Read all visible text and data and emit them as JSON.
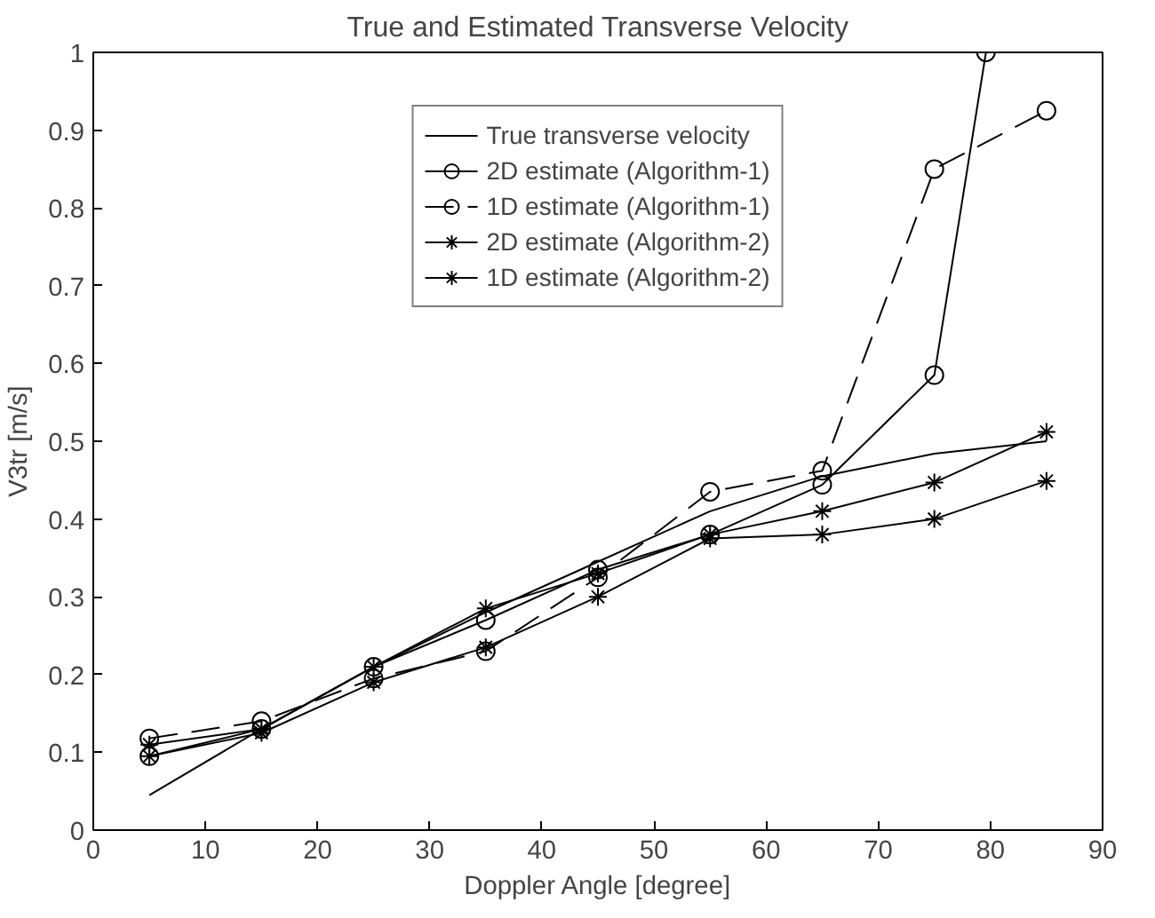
{
  "chart_data": {
    "type": "line",
    "title": "True and Estimated Transverse Velocity",
    "xlabel": "Doppler Angle [degree]",
    "ylabel": "V3tr [m/s]",
    "x": [
      5,
      15,
      25,
      35,
      45,
      55,
      65,
      75,
      85
    ],
    "xlim": [
      0,
      90
    ],
    "xticks": [
      0,
      10,
      20,
      30,
      40,
      50,
      60,
      70,
      80,
      90
    ],
    "ylim": [
      0,
      1
    ],
    "yticks": [
      0,
      0.1,
      0.2,
      0.3,
      0.4,
      0.5,
      0.6,
      0.7,
      0.8,
      0.9,
      1
    ],
    "grid": false,
    "legend": "top",
    "series": [
      {
        "name": "True transverse velocity",
        "color": "#000000",
        "marker": "none",
        "line_style": "solid",
        "values": [
          0.045,
          0.13,
          0.21,
          0.28,
          0.345,
          0.41,
          0.455,
          0.484,
          0.5
        ]
      },
      {
        "name": "2D estimate (Algorithm-1)",
        "color": "#000000",
        "marker": "circle",
        "line_style": "solid",
        "x": [
          5,
          15,
          25,
          35,
          45,
          55,
          65,
          75,
          79.6
        ],
        "values": [
          0.095,
          0.13,
          0.21,
          0.27,
          0.335,
          0.38,
          0.444,
          0.585,
          1.0
        ]
      },
      {
        "name": "1D estimate (Algorithm-1)",
        "color": "#000000",
        "marker": "circle",
        "line_style": "dashed",
        "values": [
          0.118,
          0.14,
          0.195,
          0.23,
          0.325,
          0.435,
          0.462,
          0.85,
          0.925
        ]
      },
      {
        "name": "2D estimate (Algorithm-2)",
        "color": "#000000",
        "marker": "cross",
        "line_style": "solid",
        "values": [
          0.11,
          0.13,
          0.21,
          0.285,
          0.33,
          0.38,
          0.41,
          0.447,
          0.512
        ]
      },
      {
        "name": "1D estimate (Algorithm-2)",
        "color": "#000000",
        "marker": "cross",
        "line_style": "solid",
        "values": [
          0.095,
          0.125,
          0.19,
          0.235,
          0.3,
          0.375,
          0.38,
          0.4,
          0.449
        ]
      }
    ]
  }
}
